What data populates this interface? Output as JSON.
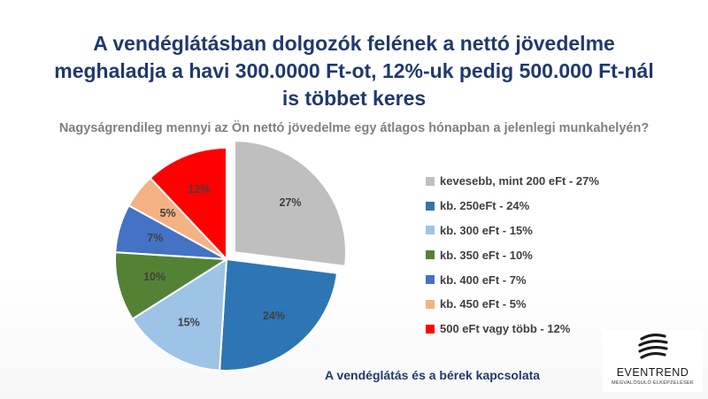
{
  "header": {
    "title_lines": [
      "A vendéglátásban dolgozók felének a nettó jövedelme",
      "meghaladja a havi 300.0000 Ft-ot, 12%-uk pedig 500.000 Ft-nál",
      "is többet keres"
    ],
    "subtitle": "Nagyságrendileg mennyi az Ön nettó jövedelme egy átlagos hónapban a jelenlegi munkahelyén?"
  },
  "chart_data": {
    "type": "pie",
    "start_angle_deg": 0,
    "direction": "clockwise",
    "exploded_slice_index": 0,
    "slices": [
      {
        "label": "kevesebb, mint 200 eFt - 27%",
        "value": 27,
        "data_label": "27%",
        "color": "#bfbfbf"
      },
      {
        "label": "kb. 250eFt - 24%",
        "value": 24,
        "data_label": "24%",
        "color": "#2e75b6"
      },
      {
        "label": "kb. 300 eFt - 15%",
        "value": 15,
        "data_label": "15%",
        "color": "#9dc3e6"
      },
      {
        "label": "kb. 350 eFt - 10%",
        "value": 10,
        "data_label": "10%",
        "color": "#548235"
      },
      {
        "label": "kb. 400 eFt - 7%",
        "value": 7,
        "data_label": "7%",
        "color": "#4472c4"
      },
      {
        "label": "kb. 450 eFt - 5%",
        "value": 5,
        "data_label": "5%",
        "color": "#f4b183"
      },
      {
        "label": "500 eFt vagy több - 12%",
        "value": 12,
        "data_label": "12%",
        "color": "#ff0000"
      }
    ],
    "legend_position": "right"
  },
  "footer": {
    "caption": "A vendéglátás és a bérek kapcsolata"
  },
  "logo": {
    "name": "EVENTREND",
    "tagline": "MEGVALÓSULÓ ELKÉPZELÉSEK"
  }
}
